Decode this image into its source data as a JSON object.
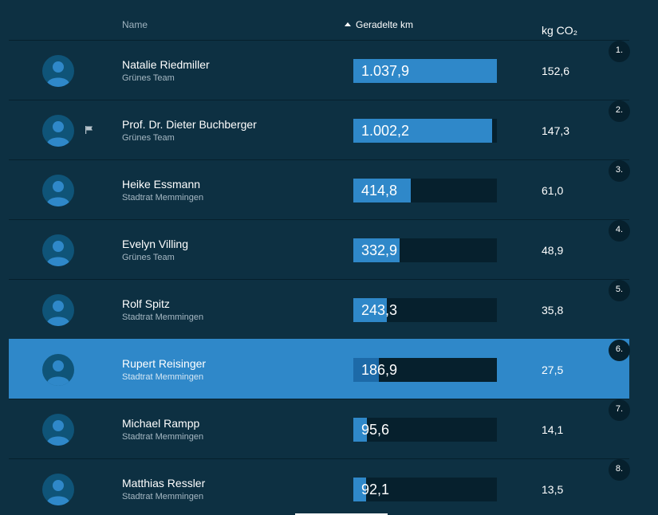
{
  "header": {
    "name": "Name",
    "km": "Geradelte km",
    "co2": "kg CO₂"
  },
  "rows": [
    {
      "rank": "1.",
      "name": "Natalie Riedmiller",
      "team": "Grünes Team",
      "km": "1.037,9",
      "km_value": 1037.9,
      "co2": "152,6",
      "flag": false,
      "highlight": false
    },
    {
      "rank": "2.",
      "name": "Prof. Dr. Dieter Buchberger",
      "team": "Grünes Team",
      "km": "1.002,2",
      "km_value": 1002.2,
      "co2": "147,3",
      "flag": true,
      "highlight": false
    },
    {
      "rank": "3.",
      "name": "Heike Essmann",
      "team": "Stadtrat Memmingen",
      "km": "414,8",
      "km_value": 414.8,
      "co2": "61,0",
      "flag": false,
      "highlight": false
    },
    {
      "rank": "4.",
      "name": "Evelyn Villing",
      "team": "Grünes Team",
      "km": "332,9",
      "km_value": 332.9,
      "co2": "48,9",
      "flag": false,
      "highlight": false
    },
    {
      "rank": "5.",
      "name": "Rolf Spitz",
      "team": "Stadtrat Memmingen",
      "km": "243,3",
      "km_value": 243.3,
      "co2": "35,8",
      "flag": false,
      "highlight": false
    },
    {
      "rank": "6.",
      "name": "Rupert Reisinger",
      "team": "Stadtrat Memmingen",
      "km": "186,9",
      "km_value": 186.9,
      "co2": "27,5",
      "flag": false,
      "highlight": true
    },
    {
      "rank": "7.",
      "name": "Michael Rampp",
      "team": "Stadtrat Memmingen",
      "km": "95,6",
      "km_value": 95.6,
      "co2": "14,1",
      "flag": false,
      "highlight": false
    },
    {
      "rank": "8.",
      "name": "Matthias Ressler",
      "team": "Stadtrat Memmingen",
      "km": "92,1",
      "km_value": 92.1,
      "co2": "13,5",
      "flag": false,
      "highlight": false
    }
  ],
  "km_max": 1037.9,
  "colors": {
    "background": "#0d3042",
    "bar_fill": "#2f88c9",
    "bar_track": "#06202d",
    "highlight_row": "#2f88c9"
  },
  "icons": {
    "avatar": "user-avatar-icon",
    "flag": "flag-icon",
    "sort": "sort-ascending-icon"
  }
}
